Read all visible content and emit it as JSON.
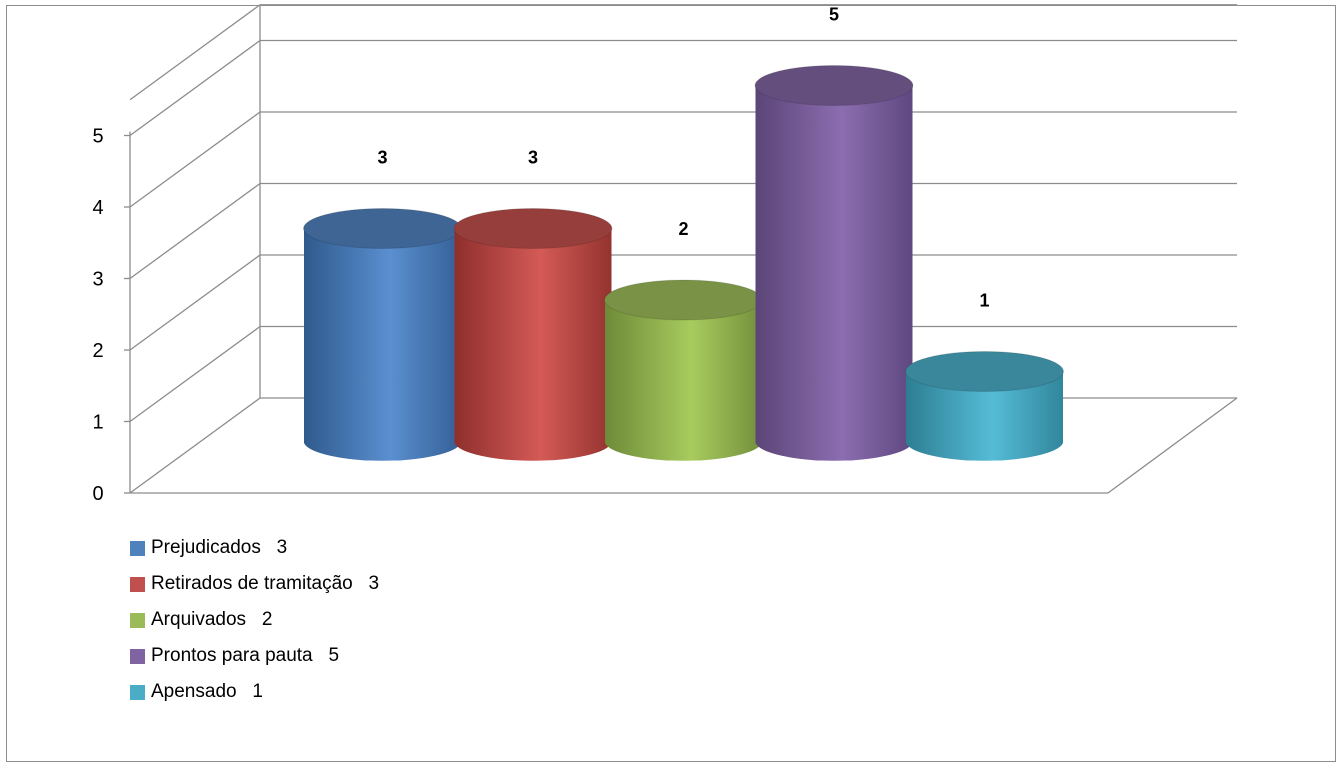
{
  "chart_data": {
    "type": "bar",
    "style": "3d-cylinder",
    "categories": [
      "Prejudicados",
      "Retirados de tramitação",
      "Arquivados",
      "Prontos para pauta",
      "Apensado"
    ],
    "values": [
      3,
      3,
      2,
      5,
      1
    ],
    "data_labels": [
      "3",
      "3",
      "2",
      "5",
      "1"
    ],
    "legend_labels": [
      "Prejudicados   3",
      "Retirados de tramitação   3",
      "Arquivados   2",
      "Prontos para pauta   5",
      "Apensado   1"
    ],
    "colors": [
      "#4f81bd",
      "#c0504d",
      "#9bbb59",
      "#8064a2",
      "#4bacc6"
    ],
    "ylim": [
      0,
      5
    ],
    "yticks": [
      "0",
      "1",
      "2",
      "3",
      "4",
      "5"
    ],
    "grid": true,
    "legend_position": "bottom-left"
  }
}
